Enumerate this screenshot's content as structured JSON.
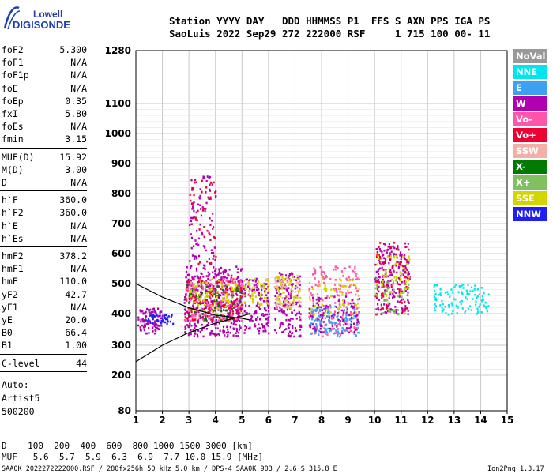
{
  "logo": {
    "line1": "Lowell",
    "line2": "DIGISONDE"
  },
  "header": {
    "row1": "Station YYYY DAY   DDD HHMMSS P1  FFS S AXN PPS IGA PS",
    "row2": "SaoLuis 2022 Sep29 272 222000 RSF     1 715 100 00- 11"
  },
  "params": [
    {
      "name": "foF2",
      "value": "5.300"
    },
    {
      "name": "foF1",
      "value": "N/A"
    },
    {
      "name": "foF1p",
      "value": "N/A"
    },
    {
      "name": "foE",
      "value": "N/A"
    },
    {
      "name": "foEp",
      "value": "0.35"
    },
    {
      "name": "fxI",
      "value": "5.80"
    },
    {
      "name": "foEs",
      "value": "N/A"
    },
    {
      "name": "fmin",
      "value": "3.15"
    },
    {
      "name": "MUF(D)",
      "value": "15.92"
    },
    {
      "name": "M(D)",
      "value": "3.00"
    },
    {
      "name": "D",
      "value": "N/A"
    },
    {
      "name": "h`F",
      "value": "360.0"
    },
    {
      "name": "h`F2",
      "value": "360.0"
    },
    {
      "name": "h`E",
      "value": "N/A"
    },
    {
      "name": "h`Es",
      "value": "N/A"
    },
    {
      "name": "hmF2",
      "value": "378.2"
    },
    {
      "name": "hmF1",
      "value": "N/A"
    },
    {
      "name": "hmE",
      "value": "110.0"
    },
    {
      "name": "yF2",
      "value": "42.7"
    },
    {
      "name": "yF1",
      "value": "N/A"
    },
    {
      "name": "yE",
      "value": "20.0"
    },
    {
      "name": "B0",
      "value": "66.4"
    },
    {
      "name": "B1",
      "value": "1.00"
    },
    {
      "name": "C-level",
      "value": "44"
    }
  ],
  "auto": {
    "line1": "Auto:",
    "line2": "Artist5",
    "line3": "500200"
  },
  "legend": [
    {
      "label": "NoVal",
      "color": "#999999"
    },
    {
      "label": "NNE",
      "color": "#00e5ee"
    },
    {
      "label": "E",
      "color": "#3ea0f0"
    },
    {
      "label": "W",
      "color": "#b000b0"
    },
    {
      "label": "Vo-",
      "color": "#ff55aa"
    },
    {
      "label": "Vo+",
      "color": "#ee0033"
    },
    {
      "label": "SSW",
      "color": "#f4b0a8"
    },
    {
      "label": "X-",
      "color": "#007a00"
    },
    {
      "label": "X+",
      "color": "#80c060"
    },
    {
      "label": "SSE",
      "color": "#d4d400"
    },
    {
      "label": "NNW",
      "color": "#2020ee"
    }
  ],
  "footer": {
    "d_row": "D    100  200  400  600  800 1000 1500 3000 [km]",
    "muf_row": "MUF   5.6  5.7  5.9  6.3  6.9  7.7 10.0 15.9 [MHz]",
    "file_line": "SAA0K_2022272222000.RSF / 280fx256h 50 kHz 5.0 km / DPS-4 SAA0K 903 / 2.6 S 315.8 E",
    "version": "Ion2Png 1.3.17"
  },
  "chart_data": {
    "type": "scatter",
    "x_ticks": [
      "1",
      "2",
      "3",
      "4",
      "5",
      "6",
      "7",
      "8",
      "9",
      "10",
      "11",
      "12",
      "13",
      "14",
      "15"
    ],
    "y_ticks": [
      "80",
      "200",
      "300",
      "400",
      "500",
      "600",
      "700",
      "800",
      "900",
      "1000",
      "1100",
      "1280"
    ],
    "xlim": [
      1,
      15
    ],
    "ylim": [
      80,
      1280
    ],
    "grid": true,
    "clusters": [
      {
        "x0": 1.05,
        "x1": 2.0,
        "y0": 340,
        "y1": 420,
        "color": "W",
        "n": 90
      },
      {
        "x0": 1.3,
        "x1": 2.4,
        "y0": 370,
        "y1": 400,
        "color": "NNW",
        "n": 40
      },
      {
        "x0": 2.8,
        "x1": 5.0,
        "y0": 330,
        "y1": 560,
        "color": "W",
        "n": 420
      },
      {
        "x0": 2.8,
        "x1": 5.0,
        "y0": 380,
        "y1": 520,
        "color": "Vo+",
        "n": 160
      },
      {
        "x0": 2.8,
        "x1": 5.0,
        "y0": 380,
        "y1": 520,
        "color": "Vo-",
        "n": 140
      },
      {
        "x0": 2.8,
        "x1": 5.0,
        "y0": 380,
        "y1": 500,
        "color": "X-",
        "n": 70
      },
      {
        "x0": 3.0,
        "x1": 4.9,
        "y0": 400,
        "y1": 520,
        "color": "SSE",
        "n": 80
      },
      {
        "x0": 3.0,
        "x1": 4.0,
        "y0": 560,
        "y1": 860,
        "color": "W",
        "n": 90
      },
      {
        "x0": 3.0,
        "x1": 4.0,
        "y0": 560,
        "y1": 860,
        "color": "Vo+",
        "n": 40
      },
      {
        "x0": 5.0,
        "x1": 6.0,
        "y0": 340,
        "y1": 520,
        "color": "W",
        "n": 140
      },
      {
        "x0": 5.0,
        "x1": 6.0,
        "y0": 430,
        "y1": 520,
        "color": "SSE",
        "n": 60
      },
      {
        "x0": 6.2,
        "x1": 7.2,
        "y0": 330,
        "y1": 540,
        "color": "W",
        "n": 170
      },
      {
        "x0": 6.2,
        "x1": 7.2,
        "y0": 420,
        "y1": 530,
        "color": "SSW",
        "n": 60
      },
      {
        "x0": 6.2,
        "x1": 7.2,
        "y0": 420,
        "y1": 530,
        "color": "SSE",
        "n": 50
      },
      {
        "x0": 7.5,
        "x1": 9.4,
        "y0": 330,
        "y1": 560,
        "color": "Vo-",
        "n": 190
      },
      {
        "x0": 7.5,
        "x1": 9.4,
        "y0": 330,
        "y1": 430,
        "color": "E",
        "n": 130
      },
      {
        "x0": 7.5,
        "x1": 9.4,
        "y0": 400,
        "y1": 520,
        "color": "SSE",
        "n": 70
      },
      {
        "x0": 7.5,
        "x1": 9.4,
        "y0": 340,
        "y1": 460,
        "color": "W",
        "n": 100
      },
      {
        "x0": 10.0,
        "x1": 11.3,
        "y0": 400,
        "y1": 640,
        "color": "W",
        "n": 200
      },
      {
        "x0": 10.0,
        "x1": 11.3,
        "y0": 400,
        "y1": 640,
        "color": "Vo+",
        "n": 80
      },
      {
        "x0": 10.0,
        "x1": 11.3,
        "y0": 460,
        "y1": 600,
        "color": "SSE",
        "n": 60
      },
      {
        "x0": 10.0,
        "x1": 11.3,
        "y0": 400,
        "y1": 520,
        "color": "X+",
        "n": 40
      },
      {
        "x0": 12.2,
        "x1": 14.3,
        "y0": 400,
        "y1": 500,
        "color": "NNE",
        "n": 110
      }
    ],
    "curves": [
      {
        "points": [
          [
            1,
            245
          ],
          [
            2,
            300
          ],
          [
            3,
            340
          ],
          [
            4,
            370
          ],
          [
            5,
            392
          ],
          [
            5.3,
            400
          ]
        ]
      },
      {
        "points": [
          [
            1,
            500
          ],
          [
            2,
            455
          ],
          [
            3,
            420
          ],
          [
            4,
            395
          ],
          [
            5,
            385
          ],
          [
            5.3,
            380
          ]
        ]
      }
    ]
  }
}
